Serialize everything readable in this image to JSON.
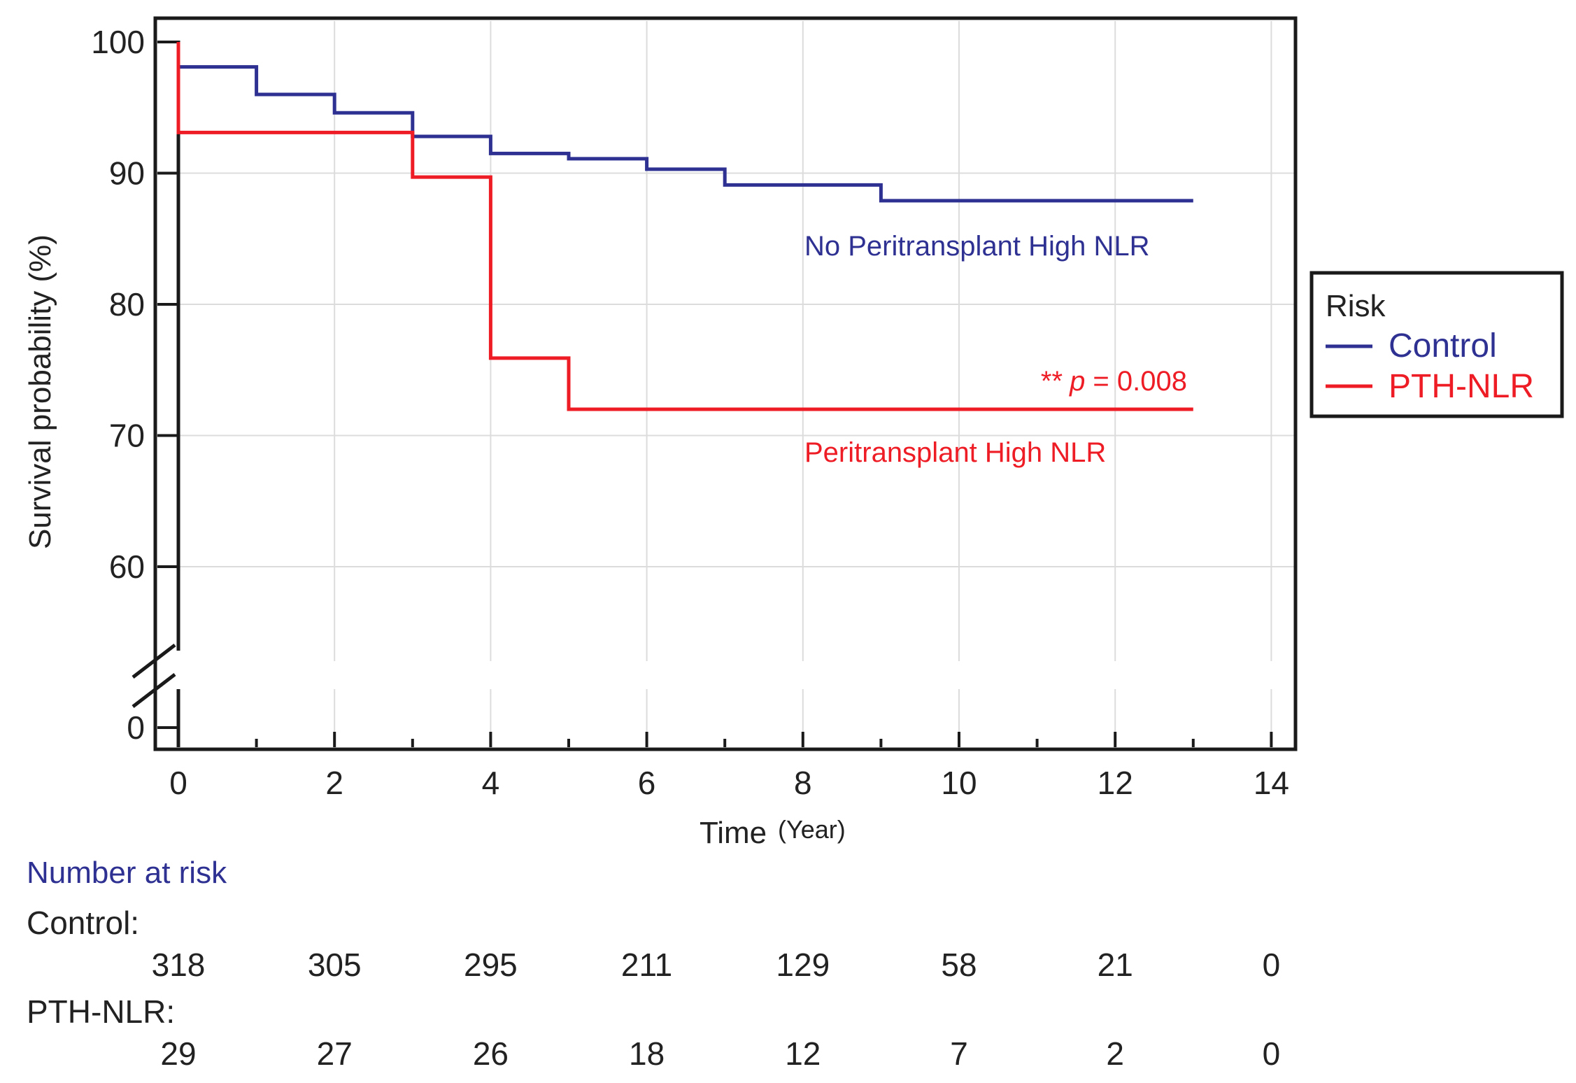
{
  "chart_data": {
    "type": "line",
    "subtype": "kaplan-meier-step",
    "xlabel": "Time",
    "xlabel_unit": "(Year)",
    "ylabel": "Survival probability (%)",
    "xlim": [
      0,
      14
    ],
    "ylim": [
      55,
      100
    ],
    "y_break": true,
    "x_ticks": [
      "0",
      "2",
      "4",
      "6",
      "8",
      "10",
      "12",
      "14"
    ],
    "y_ticks": [
      "100",
      "90",
      "80",
      "70",
      "60"
    ],
    "y_zero_tick": "0",
    "grid": true,
    "series": [
      {
        "name": "Control",
        "color": "#2e3192",
        "annotation": "No Peritransplant High NLR",
        "x": [
          0,
          1,
          2,
          3,
          4,
          5,
          6,
          7,
          9,
          13
        ],
        "y": [
          98.1,
          96.0,
          94.6,
          92.8,
          91.5,
          91.1,
          90.3,
          89.1,
          87.9,
          87.9
        ]
      },
      {
        "name": "PTH-NLR",
        "color": "#ee1c25",
        "annotation": "Peritransplant High NLR",
        "x": [
          0,
          3,
          4,
          5,
          13
        ],
        "y": [
          93.1,
          89.7,
          75.9,
          72.0,
          72.0
        ]
      }
    ],
    "p_value": {
      "stars": "**",
      "p_label": "p",
      "rest": " = 0.008"
    },
    "legend": {
      "title": "Risk",
      "position": "right",
      "entries": [
        "Control",
        "PTH-NLR"
      ]
    },
    "risk_table": {
      "title": "Number at risk",
      "title_color": "#2e3192",
      "rows": [
        {
          "label": "Control:",
          "values": [
            "318",
            "305",
            "295",
            "211",
            "129",
            "58",
            "21",
            "0"
          ]
        },
        {
          "label": "PTH-NLR:",
          "values": [
            "29",
            "27",
            "26",
            "18",
            "12",
            "7",
            "2",
            "0"
          ]
        }
      ]
    }
  }
}
